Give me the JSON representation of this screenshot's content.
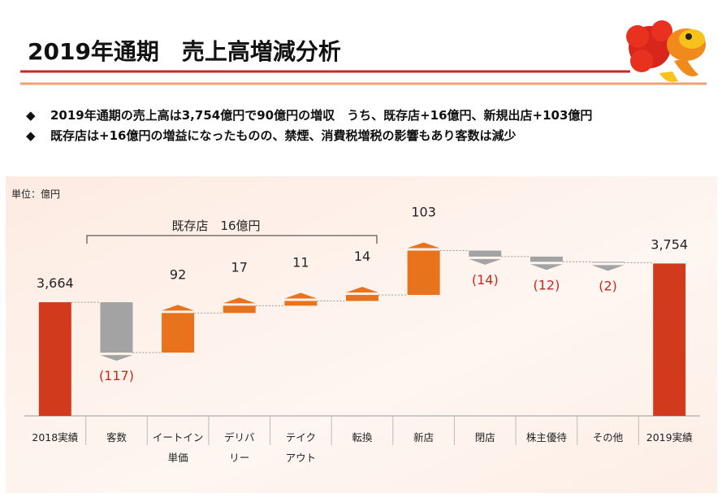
{
  "header": {
    "title": "2019年通期　売上高増減分析"
  },
  "bullets": [
    "2019年通期の売上高は3,754億円で90億円の増収　うち、既存店+16億円、新規出店+103億円",
    "既存店は+16億円の増益になったものの、禁煙、消費税増税の影響もあり客数は減少"
  ],
  "chart_data": {
    "type": "waterfall",
    "unit_label": "単位：億円",
    "categories": [
      "2018実績",
      "客数",
      "イートイン\n単価",
      "デリバ\nリー",
      "テイク\nアウト",
      "転換",
      "新店",
      "閉店",
      "株主優待",
      "その他",
      "2019実績"
    ],
    "measure": [
      "absolute",
      "relative",
      "relative",
      "relative",
      "relative",
      "relative",
      "relative",
      "relative",
      "relative",
      "relative",
      "total"
    ],
    "values": [
      3664,
      -117,
      92,
      17,
      11,
      14,
      103,
      -14,
      -12,
      -2,
      3754
    ],
    "value_labels": [
      "3,664",
      "(117)",
      "92",
      "17",
      "11",
      "14",
      "103",
      "(14)",
      "(12)",
      "(2)",
      "3,754"
    ],
    "colors": {
      "total": "#d23a1e",
      "increase": "#e8731c",
      "decrease": "#a3a3a3",
      "negative_label": "#d2231e"
    },
    "ylim": [
      3400,
      3900
    ],
    "annotations": [
      {
        "text": "既存店　16億円"
      }
    ]
  }
}
